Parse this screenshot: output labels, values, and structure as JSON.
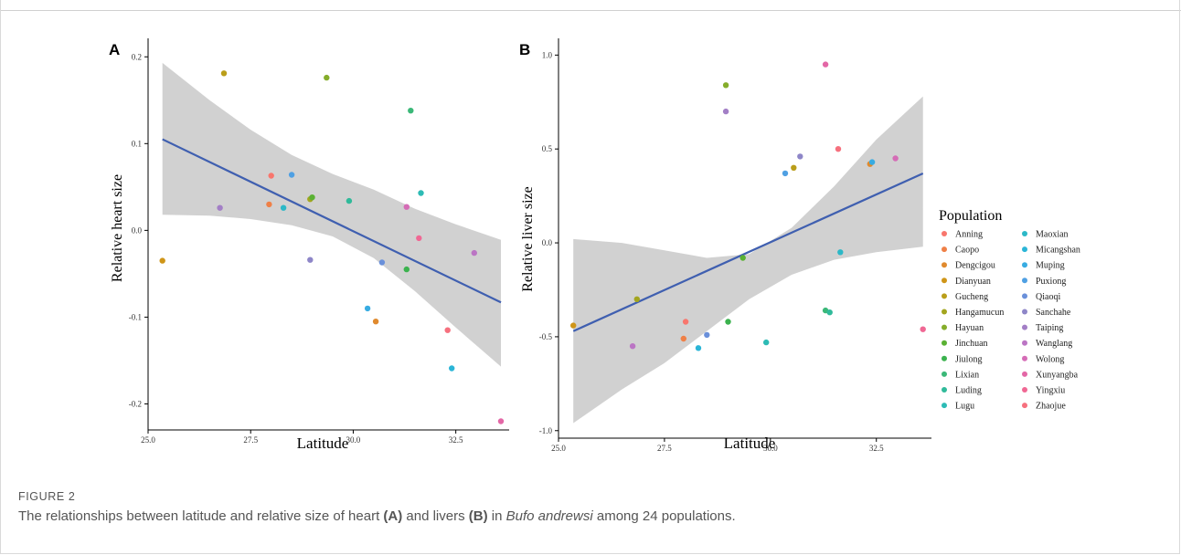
{
  "figure_label": "FIGURE 2",
  "caption": {
    "before_a": "The relationships between latitude and relative size of heart ",
    "a": "(A)",
    "between": " and livers ",
    "b": "(B)",
    "in": " in ",
    "species": "Bufo andrewsi",
    "after": " among 24 populations."
  },
  "legend": {
    "title": "Population",
    "items": [
      {
        "name": "Anning",
        "color": "#F8766D"
      },
      {
        "name": "Caopo",
        "color": "#EF8047"
      },
      {
        "name": "Dengcigou",
        "color": "#E08A2E"
      },
      {
        "name": "Dianyuan",
        "color": "#CF9518"
      },
      {
        "name": "Gucheng",
        "color": "#BA9E1A"
      },
      {
        "name": "Hangamucun",
        "color": "#A3A51F"
      },
      {
        "name": "Hayuan",
        "color": "#85AD2B"
      },
      {
        "name": "Jinchuan",
        "color": "#5AB133"
      },
      {
        "name": "Jiulong",
        "color": "#3BB24E"
      },
      {
        "name": "Lixian",
        "color": "#3BB878"
      },
      {
        "name": "Luding",
        "color": "#30BA9A"
      },
      {
        "name": "Lugu",
        "color": "#2DBBB5"
      },
      {
        "name": "Maoxian",
        "color": "#2CB8C7"
      },
      {
        "name": "Micangshan",
        "color": "#2BB5D7"
      },
      {
        "name": "Muping",
        "color": "#38ACE2"
      },
      {
        "name": "Puxiong",
        "color": "#4FA0E3"
      },
      {
        "name": "Qiaoqi",
        "color": "#6A90DA"
      },
      {
        "name": "Sanchahe",
        "color": "#8E86C8"
      },
      {
        "name": "Taiping",
        "color": "#A37FC6"
      },
      {
        "name": "Wanglang",
        "color": "#BB75C4"
      },
      {
        "name": "Wolong",
        "color": "#D56CB6"
      },
      {
        "name": "Xunyangba",
        "color": "#E367A6"
      },
      {
        "name": "Yingxiu",
        "color": "#F06894"
      },
      {
        "name": "Zhaojue",
        "color": "#F6707E"
      }
    ]
  },
  "chart_data": [
    {
      "type": "scatter",
      "panel_label": "A",
      "xlabel": "Latitude",
      "ylabel": "Relative heart size",
      "xlim": [
        25.0,
        33.8
      ],
      "ylim": [
        -0.23,
        0.215
      ],
      "xticks": [
        25.0,
        27.5,
        30.0,
        32.5
      ],
      "xtick_labels": [
        "25.0",
        "27.5",
        "30.0",
        "32.5"
      ],
      "yticks": [
        -0.2,
        -0.1,
        0.0,
        0.1,
        0.2
      ],
      "ytick_labels": [
        "-0.2",
        "-0.1",
        "0.0",
        "0.1",
        "0.2"
      ],
      "regression_line": {
        "x": [
          25.35,
          33.6
        ],
        "y": [
          0.105,
          -0.083
        ]
      },
      "confidence_band": {
        "x": [
          25.35,
          26.5,
          27.5,
          28.5,
          29.5,
          30.5,
          31.5,
          32.5,
          33.6
        ],
        "upper": [
          0.193,
          0.15,
          0.116,
          0.087,
          0.065,
          0.047,
          0.025,
          0.007,
          -0.011
        ],
        "lower": [
          0.018,
          0.017,
          0.013,
          0.006,
          -0.007,
          -0.032,
          -0.07,
          -0.112,
          -0.157
        ]
      },
      "points": [
        {
          "population": "Anning",
          "x": 28.0,
          "y": 0.063,
          "color": "#F8766D"
        },
        {
          "population": "Caopo",
          "x": 27.95,
          "y": 0.03,
          "color": "#EF8047"
        },
        {
          "population": "Dengcigou",
          "x": 30.55,
          "y": -0.105,
          "color": "#E08A2E"
        },
        {
          "population": "Dianyuan",
          "x": 25.35,
          "y": -0.035,
          "color": "#CF9518"
        },
        {
          "population": "Gucheng",
          "x": 26.85,
          "y": 0.181,
          "color": "#BA9E1A"
        },
        {
          "population": "Hangamucun",
          "x": 28.95,
          "y": 0.036,
          "color": "#A3A51F"
        },
        {
          "population": "Hayuan",
          "x": 29.35,
          "y": 0.176,
          "color": "#85AD2B"
        },
        {
          "population": "Jinchuan",
          "x": 29.0,
          "y": 0.038,
          "color": "#5AB133"
        },
        {
          "population": "Jiulong",
          "x": 31.3,
          "y": -0.045,
          "color": "#3BB24E"
        },
        {
          "population": "Lixian",
          "x": 31.4,
          "y": 0.138,
          "color": "#3BB878"
        },
        {
          "population": "Luding",
          "x": 29.9,
          "y": 0.034,
          "color": "#30BA9A"
        },
        {
          "population": "Lugu",
          "x": 31.65,
          "y": 0.043,
          "color": "#2DBBB5"
        },
        {
          "population": "Maoxian",
          "x": 28.3,
          "y": 0.026,
          "color": "#2CB8C7"
        },
        {
          "population": "Micangshan",
          "x": 32.4,
          "y": -0.159,
          "color": "#2BB5D7"
        },
        {
          "population": "Muping",
          "x": 30.35,
          "y": -0.09,
          "color": "#38ACE2"
        },
        {
          "population": "Puxiong",
          "x": 28.5,
          "y": 0.064,
          "color": "#4FA0E3"
        },
        {
          "population": "Qiaoqi",
          "x": 30.7,
          "y": -0.037,
          "color": "#6A90DA"
        },
        {
          "population": "Sanchahe",
          "x": 28.95,
          "y": -0.034,
          "color": "#8E86C8"
        },
        {
          "population": "Taiping",
          "x": 26.75,
          "y": 0.026,
          "color": "#A37FC6"
        },
        {
          "population": "Wanglang",
          "x": 32.95,
          "y": -0.026,
          "color": "#BB75C4"
        },
        {
          "population": "Wolong",
          "x": 31.3,
          "y": 0.027,
          "color": "#D56CB6"
        },
        {
          "population": "Xunyangba",
          "x": 33.6,
          "y": -0.22,
          "color": "#E367A6"
        },
        {
          "population": "Yingxiu",
          "x": 31.6,
          "y": -0.009,
          "color": "#F06894"
        },
        {
          "population": "Zhaojue",
          "x": 32.3,
          "y": -0.115,
          "color": "#F6707E"
        }
      ]
    },
    {
      "type": "scatter",
      "panel_label": "B",
      "xlabel": "Latitude",
      "ylabel": "Relative liver size",
      "xlim": [
        25.0,
        33.8
      ],
      "ylim": [
        -1.04,
        1.06
      ],
      "xticks": [
        25.0,
        27.5,
        30.0,
        32.5
      ],
      "xtick_labels": [
        "25.0",
        "27.5",
        "30.0",
        "32.5"
      ],
      "yticks": [
        -1.0,
        -0.5,
        0.0,
        0.5,
        1.0
      ],
      "ytick_labels": [
        "-1.0",
        "-0.5",
        "0.0",
        "0.5",
        "1.0"
      ],
      "regression_line": {
        "x": [
          25.35,
          33.6
        ],
        "y": [
          -0.47,
          0.37
        ]
      },
      "confidence_band": {
        "x": [
          25.35,
          26.5,
          27.5,
          28.5,
          29.5,
          30.5,
          31.5,
          32.5,
          33.6
        ],
        "upper": [
          0.02,
          0.0,
          -0.04,
          -0.08,
          -0.06,
          0.08,
          0.3,
          0.55,
          0.78
        ],
        "lower": [
          -0.96,
          -0.78,
          -0.64,
          -0.47,
          -0.3,
          -0.17,
          -0.09,
          -0.05,
          -0.02
        ]
      },
      "points": [
        {
          "population": "Anning",
          "x": 28.0,
          "y": -0.42,
          "color": "#F8766D"
        },
        {
          "population": "Caopo",
          "x": 27.95,
          "y": -0.51,
          "color": "#EF8047"
        },
        {
          "population": "Dengcigou",
          "x": 32.35,
          "y": 0.42,
          "color": "#E08A2E"
        },
        {
          "population": "Dianyuan",
          "x": 25.35,
          "y": -0.44,
          "color": "#CF9518"
        },
        {
          "population": "Gucheng",
          "x": 30.55,
          "y": 0.4,
          "color": "#BA9E1A"
        },
        {
          "population": "Hangamucun",
          "x": 26.85,
          "y": -0.3,
          "color": "#A3A51F"
        },
        {
          "population": "Hayuan",
          "x": 28.95,
          "y": 0.84,
          "color": "#85AD2B"
        },
        {
          "population": "Jinchuan",
          "x": 29.35,
          "y": -0.08,
          "color": "#5AB133"
        },
        {
          "population": "Jiulong",
          "x": 29.0,
          "y": -0.42,
          "color": "#3BB24E"
        },
        {
          "population": "Lixian",
          "x": 31.3,
          "y": -0.36,
          "color": "#3BB878"
        },
        {
          "population": "Luding",
          "x": 31.4,
          "y": -0.37,
          "color": "#30BA9A"
        },
        {
          "population": "Lugu",
          "x": 29.9,
          "y": -0.53,
          "color": "#2DBBB5"
        },
        {
          "population": "Maoxian",
          "x": 31.65,
          "y": -0.05,
          "color": "#2CB8C7"
        },
        {
          "population": "Micangshan",
          "x": 28.3,
          "y": -0.56,
          "color": "#2BB5D7"
        },
        {
          "population": "Muping",
          "x": 32.4,
          "y": 0.43,
          "color": "#38ACE2"
        },
        {
          "population": "Puxiong",
          "x": 30.35,
          "y": 0.37,
          "color": "#4FA0E3"
        },
        {
          "population": "Qiaoqi",
          "x": 28.5,
          "y": -0.49,
          "color": "#6A90DA"
        },
        {
          "population": "Sanchahe",
          "x": 30.7,
          "y": 0.46,
          "color": "#8E86C8"
        },
        {
          "population": "Taiping",
          "x": 28.95,
          "y": 0.7,
          "color": "#A37FC6"
        },
        {
          "population": "Wanglang",
          "x": 26.75,
          "y": -0.55,
          "color": "#BB75C4"
        },
        {
          "population": "Wolong",
          "x": 32.95,
          "y": 0.45,
          "color": "#D56CB6"
        },
        {
          "population": "Xunyangba",
          "x": 31.3,
          "y": 0.95,
          "color": "#E367A6"
        },
        {
          "population": "Yingxiu",
          "x": 33.6,
          "y": -0.46,
          "color": "#F06894"
        },
        {
          "population": "Zhaojue",
          "x": 31.6,
          "y": 0.5,
          "color": "#F6707E"
        }
      ]
    }
  ]
}
